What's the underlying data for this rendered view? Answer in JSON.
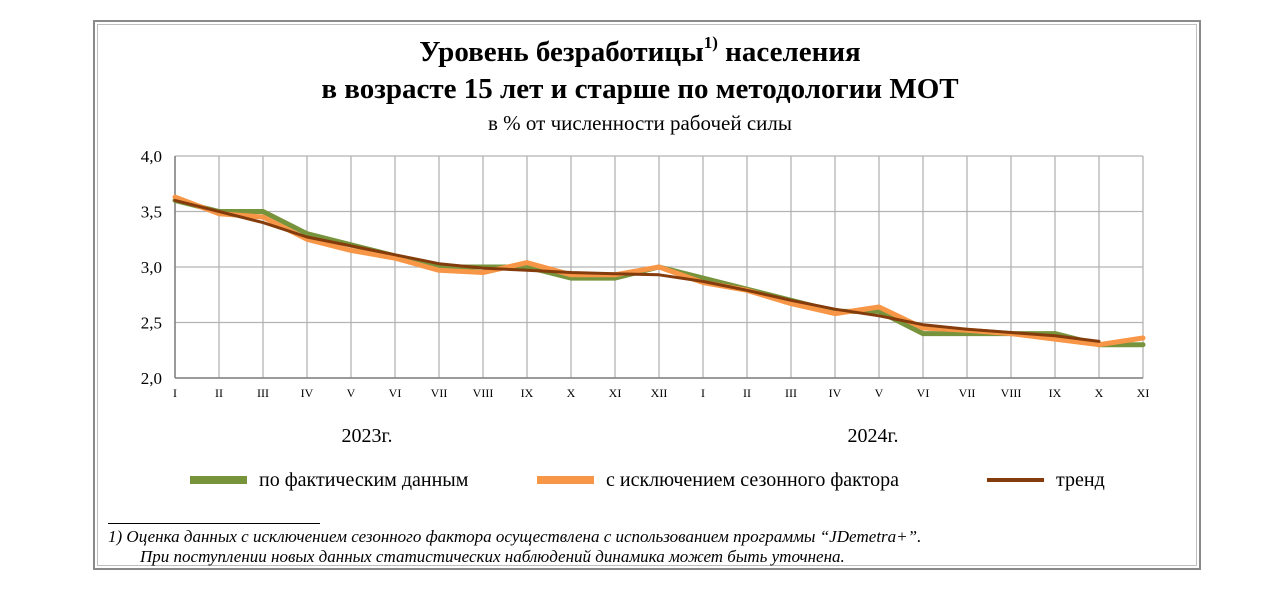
{
  "chart_data": {
    "type": "line",
    "title_line1": "Уровень безработицы",
    "title_sup": "1)",
    "title_line1_rest": "населения",
    "title_line2": "в возрасте 15 лет и старше  по методологии МОТ",
    "subtitle": "в % от численности рабочей силы",
    "categories": [
      "I",
      "II",
      "III",
      "IV",
      "V",
      "VI",
      "VII",
      "VIII",
      "IX",
      "X",
      "XI",
      "XII",
      "I",
      "II",
      "III",
      "IV",
      "V",
      "VI",
      "VII",
      "VIII",
      "IX",
      "X",
      "XI"
    ],
    "year_labels": [
      {
        "label": "2023г.",
        "span_start": 0,
        "span_end": 11
      },
      {
        "label": "2024г.",
        "span_start": 12,
        "span_end": 22
      }
    ],
    "ylim": [
      2.0,
      4.0
    ],
    "yticks": [
      "2,0",
      "2,5",
      "3,0",
      "3,5",
      "4,0"
    ],
    "ytick_values": [
      2.0,
      2.5,
      3.0,
      3.5,
      4.0
    ],
    "grid": true,
    "series": [
      {
        "name": "по фактическим  данным",
        "color": "#77933c",
        "width": 5,
        "values": [
          3.6,
          3.5,
          3.5,
          3.3,
          3.2,
          3.1,
          3.0,
          3.0,
          3.0,
          2.9,
          2.9,
          3.0,
          2.9,
          2.8,
          2.7,
          2.6,
          2.6,
          2.4,
          2.4,
          2.4,
          2.4,
          2.3,
          2.3
        ]
      },
      {
        "name": "с исключением  сезонного  фактора",
        "color": "#f79646",
        "width": 5,
        "values": [
          3.63,
          3.48,
          3.45,
          3.25,
          3.15,
          3.08,
          2.97,
          2.95,
          3.04,
          2.93,
          2.93,
          3.0,
          2.86,
          2.79,
          2.67,
          2.58,
          2.64,
          2.45,
          2.43,
          2.4,
          2.35,
          2.3,
          2.36
        ]
      },
      {
        "name": "тренд",
        "color": "#843c0c",
        "width": 3,
        "values": [
          3.6,
          3.5,
          3.4,
          3.27,
          3.19,
          3.11,
          3.03,
          2.99,
          2.97,
          2.95,
          2.94,
          2.93,
          2.87,
          2.79,
          2.7,
          2.62,
          2.56,
          2.48,
          2.44,
          2.41,
          2.38,
          2.33,
          null
        ]
      }
    ]
  },
  "footnote": {
    "line1": "1)  Оценка  данных  с  исключением  сезонного  фактора  осуществлена  с  использованием  программы  “JDemetra+”.",
    "line2": "При поступлении новых данных статистических наблюдений динамика может быть уточнена."
  }
}
